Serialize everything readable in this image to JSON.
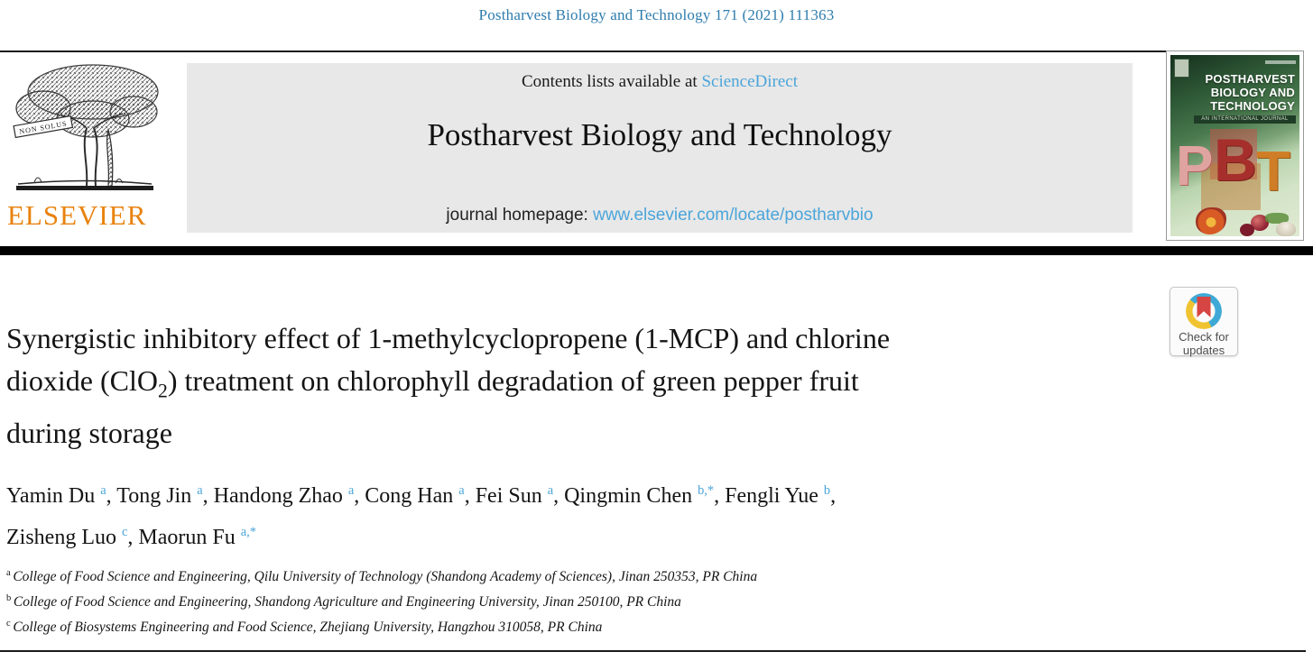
{
  "header": {
    "citation": "Postharvest Biology and Technology 171 (2021) 111363"
  },
  "elsevier": {
    "wordmark": "ELSEVIER",
    "motto": "NON SOLUS"
  },
  "banner": {
    "contents_prefix": "Contents lists available at ",
    "sciencedirect_label": "ScienceDirect",
    "journal_title": "Postharvest Biology and Technology",
    "homepage_prefix": "journal homepage: ",
    "homepage_url": "www.elsevier.com/locate/postharvbio"
  },
  "cover": {
    "title_line1": "POSTHARVEST",
    "title_line2": "BIOLOGY AND",
    "title_line3": "TECHNOLOGY",
    "subtitle": "AN INTERNATIONAL JOURNAL",
    "letters": [
      "P",
      "B",
      "T"
    ]
  },
  "badge": {
    "line1": "Check for",
    "line2": "updates"
  },
  "article": {
    "title_lines": [
      [
        {
          "t": "Synergistic inhibitory effect of 1-methylcyclopropene (1-MCP) and chlorine"
        }
      ],
      [
        {
          "t": "dioxide (ClO"
        },
        {
          "t": "2",
          "sub": true
        },
        {
          "t": ") treatment on chlorophyll degradation of green pepper fruit"
        }
      ],
      [
        {
          "t": "during storage"
        }
      ]
    ],
    "author_lines": [
      [
        {
          "name": "Yamin Du",
          "sup": "a",
          "sep": ", "
        },
        {
          "name": "Tong Jin",
          "sup": "a",
          "sep": ", "
        },
        {
          "name": "Handong Zhao",
          "sup": "a",
          "sep": ", "
        },
        {
          "name": "Cong Han",
          "sup": "a",
          "sep": ", "
        },
        {
          "name": "Fei Sun",
          "sup": "a",
          "sep": ", "
        },
        {
          "name": "Qingmin Chen",
          "sup": "b,*",
          "sep": ", "
        },
        {
          "name": "Fengli Yue",
          "sup": "b",
          "sep": ","
        }
      ],
      [
        {
          "name": "Zisheng Luo",
          "sup": "c",
          "sep": ", "
        },
        {
          "name": "Maorun Fu",
          "sup": "a,*",
          "sep": ""
        }
      ]
    ],
    "affiliations": [
      {
        "sup": "a",
        "text": "College of Food Science and Engineering, Qilu University of Technology (Shandong Academy of Sciences), Jinan 250353, PR China"
      },
      {
        "sup": "b",
        "text": "College of Food Science and Engineering, Shandong Agriculture and Engineering University, Jinan 250100, PR China"
      },
      {
        "sup": "c",
        "text": "College of Biosystems Engineering and Food Science, Zhejiang University, Hangzhou 310058, PR China"
      }
    ]
  }
}
